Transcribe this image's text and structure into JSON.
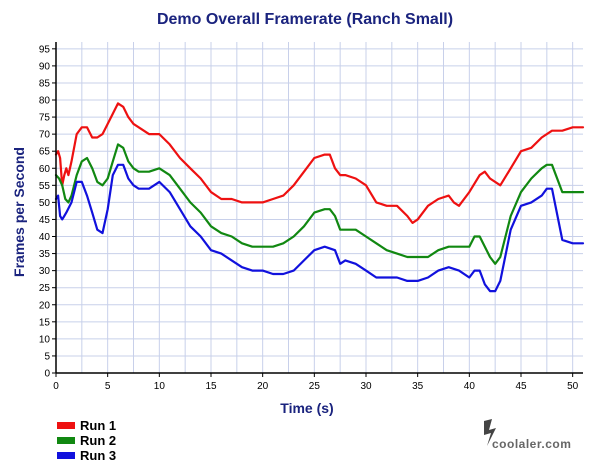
{
  "watermark": "coolaler.com",
  "chart_data": {
    "type": "line",
    "title": "Demo Overall Framerate (Ranch Small)",
    "xlabel": "Time (s)",
    "ylabel": "Frames per Second",
    "xlim": [
      0,
      51
    ],
    "ylim": [
      0,
      97
    ],
    "xticks": [
      0,
      5,
      10,
      15,
      20,
      25,
      30,
      35,
      40,
      45,
      50
    ],
    "yticks": [
      0,
      5,
      10,
      15,
      20,
      25,
      30,
      35,
      40,
      45,
      50,
      55,
      60,
      65,
      70,
      75,
      80,
      85,
      90,
      95
    ],
    "grid": true,
    "legend_position": "bottom-left",
    "colors": {
      "title": "#1a237e",
      "axis_title": "#1a237e",
      "grid": "#c8d0ea",
      "axis": "#000000",
      "run1": "#ee1111",
      "run2": "#118811",
      "run3": "#1111dd"
    },
    "series": [
      {
        "name": "Run 1",
        "color": "#ee1111",
        "x": [
          0,
          0.2,
          0.4,
          0.6,
          0.8,
          1,
          1.2,
          1.5,
          2,
          2.5,
          3,
          3.5,
          4,
          4.5,
          5,
          5.5,
          6,
          6.5,
          7,
          7.5,
          8,
          9,
          10,
          11,
          12,
          13,
          14,
          15,
          16,
          17,
          18,
          19,
          20,
          21,
          22,
          23,
          24,
          25,
          26,
          26.5,
          27,
          27.5,
          28,
          29,
          30,
          31,
          32,
          33,
          34,
          34.5,
          35,
          36,
          37,
          38,
          38.5,
          39,
          40,
          41,
          41.5,
          42,
          43,
          44,
          45,
          46,
          47,
          48,
          49,
          50,
          51
        ],
        "values": [
          64,
          65,
          63,
          55,
          58,
          60,
          58,
          62,
          70,
          72,
          72,
          69,
          69,
          70,
          73,
          76,
          79,
          78,
          75,
          73,
          72,
          70,
          70,
          67,
          63,
          60,
          57,
          53,
          51,
          51,
          50,
          50,
          50,
          51,
          52,
          55,
          59,
          63,
          64,
          64,
          60,
          58,
          58,
          57,
          55,
          50,
          49,
          49,
          46,
          44,
          45,
          49,
          51,
          52,
          50,
          49,
          53,
          58,
          59,
          57,
          55,
          60,
          65,
          66,
          69,
          71,
          71,
          72,
          72
        ]
      },
      {
        "name": "Run 2",
        "color": "#118811",
        "x": [
          0,
          0.3,
          0.6,
          0.9,
          1.2,
          1.5,
          2,
          2.5,
          3,
          3.5,
          4,
          4.5,
          5,
          5.5,
          6,
          6.5,
          7,
          7.5,
          8,
          9,
          10,
          11,
          12,
          13,
          14,
          15,
          16,
          17,
          18,
          19,
          20,
          21,
          22,
          23,
          24,
          25,
          26,
          26.5,
          27,
          27.5,
          28,
          29,
          30,
          31,
          32,
          33,
          34,
          35,
          36,
          37,
          38,
          39,
          40,
          40.5,
          41,
          42,
          42.5,
          43,
          44,
          45,
          46,
          47,
          47.5,
          48,
          49,
          50,
          51
        ],
        "values": [
          58,
          57,
          55,
          51,
          50,
          52,
          58,
          62,
          63,
          60,
          56,
          55,
          57,
          62,
          67,
          66,
          62,
          60,
          59,
          59,
          60,
          58,
          54,
          50,
          47,
          43,
          41,
          40,
          38,
          37,
          37,
          37,
          38,
          40,
          43,
          47,
          48,
          48,
          46,
          42,
          42,
          42,
          40,
          38,
          36,
          35,
          34,
          34,
          34,
          36,
          37,
          37,
          37,
          40,
          40,
          34,
          32,
          34,
          46,
          53,
          57,
          60,
          61,
          61,
          53,
          53,
          53
        ]
      },
      {
        "name": "Run 3",
        "color": "#1111dd",
        "x": [
          0,
          0.2,
          0.4,
          0.6,
          0.8,
          1,
          1.5,
          2,
          2.5,
          3,
          3.5,
          4,
          4.5,
          5,
          5.5,
          6,
          6.5,
          7,
          7.5,
          8,
          9,
          10,
          11,
          12,
          13,
          14,
          15,
          16,
          17,
          18,
          19,
          20,
          21,
          22,
          23,
          24,
          25,
          26,
          27,
          27.5,
          28,
          29,
          30,
          31,
          32,
          33,
          34,
          35,
          36,
          37,
          38,
          39,
          40,
          40.5,
          41,
          41.5,
          42,
          42.5,
          43,
          44,
          45,
          46,
          47,
          47.5,
          48,
          49,
          50,
          51
        ],
        "values": [
          51,
          52,
          46,
          45,
          46,
          47,
          50,
          56,
          56,
          52,
          47,
          42,
          41,
          48,
          58,
          61,
          61,
          57,
          55,
          54,
          54,
          56,
          53,
          48,
          43,
          40,
          36,
          35,
          33,
          31,
          30,
          30,
          29,
          29,
          30,
          33,
          36,
          37,
          36,
          32,
          33,
          32,
          30,
          28,
          28,
          28,
          27,
          27,
          28,
          30,
          31,
          30,
          28,
          30,
          30,
          26,
          24,
          24,
          27,
          42,
          49,
          50,
          52,
          54,
          54,
          39,
          38,
          38
        ]
      }
    ]
  }
}
